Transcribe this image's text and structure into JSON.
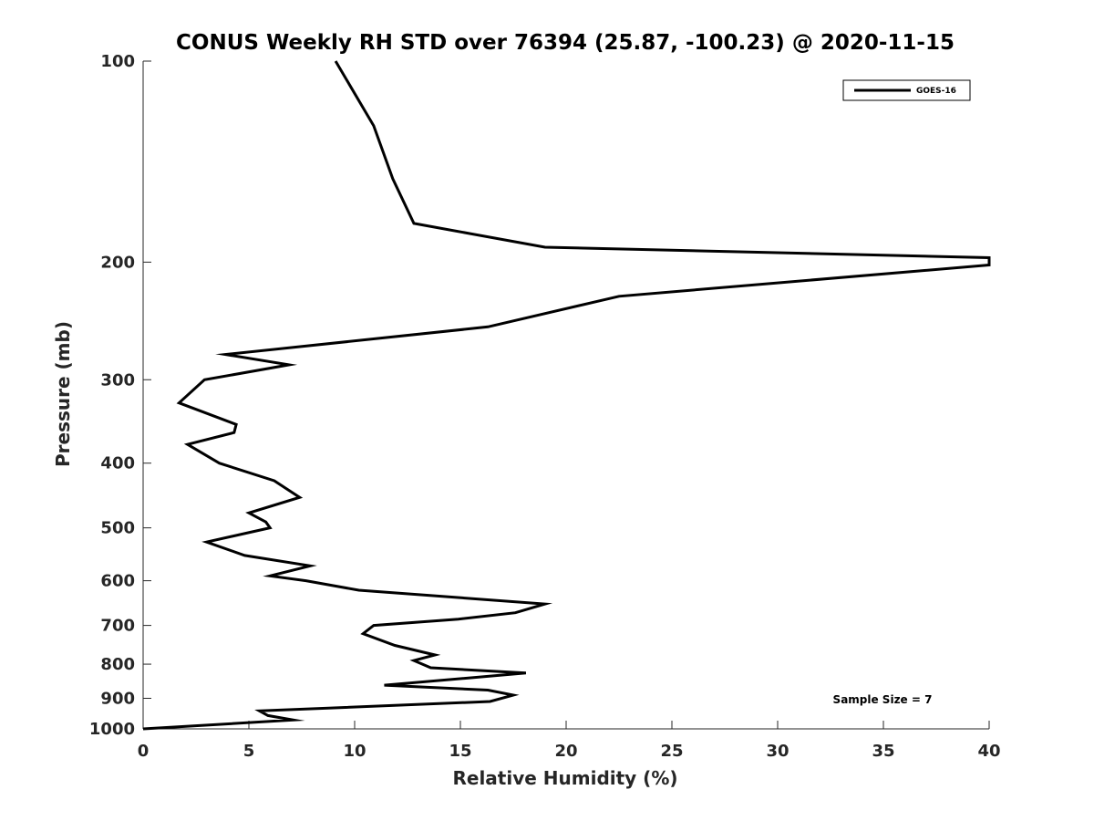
{
  "chart_data": {
    "type": "line",
    "title": "CONUS Weekly RH STD over 76394 (25.87, -100.23) @ 2020-11-15",
    "xlabel": "Relative Humidity (%)",
    "ylabel": "Pressure (mb)",
    "xlim": [
      0,
      40
    ],
    "ylim": [
      100,
      1000
    ],
    "y_scale": "log",
    "y_reversed": true,
    "x_ticks": [
      0,
      5,
      10,
      15,
      20,
      25,
      30,
      35,
      40
    ],
    "y_ticks": [
      100,
      200,
      300,
      400,
      500,
      600,
      700,
      800,
      900,
      1000
    ],
    "grid": false,
    "legend_position": "top-right",
    "annotation": "Sample Size = 7",
    "series": [
      {
        "name": "GOES-16",
        "color": "#000000",
        "points": [
          [
            9.1,
            100
          ],
          [
            10.9,
            125
          ],
          [
            11.8,
            150
          ],
          [
            12.8,
            175
          ],
          [
            19.0,
            190
          ],
          [
            40.0,
            197
          ],
          [
            40.0,
            202
          ],
          [
            22.5,
            225
          ],
          [
            16.3,
            250
          ],
          [
            3.9,
            275
          ],
          [
            6.9,
            285
          ],
          [
            2.9,
            300
          ],
          [
            1.7,
            325
          ],
          [
            4.4,
            350
          ],
          [
            4.3,
            360
          ],
          [
            2.1,
            375
          ],
          [
            3.6,
            400
          ],
          [
            6.2,
            425
          ],
          [
            7.4,
            450
          ],
          [
            5.0,
            475
          ],
          [
            5.8,
            490
          ],
          [
            6.0,
            500
          ],
          [
            3.0,
            525
          ],
          [
            4.8,
            550
          ],
          [
            7.9,
            570
          ],
          [
            6.0,
            590
          ],
          [
            7.7,
            600
          ],
          [
            10.2,
            620
          ],
          [
            19.0,
            650
          ],
          [
            17.6,
            670
          ],
          [
            14.9,
            685
          ],
          [
            10.9,
            700
          ],
          [
            10.4,
            720
          ],
          [
            11.9,
            750
          ],
          [
            13.8,
            775
          ],
          [
            12.8,
            790
          ],
          [
            13.6,
            810
          ],
          [
            18.1,
            825
          ],
          [
            11.4,
            860
          ],
          [
            16.3,
            875
          ],
          [
            17.5,
            890
          ],
          [
            16.4,
            910
          ],
          [
            5.5,
            940
          ],
          [
            5.9,
            955
          ],
          [
            7.1,
            970
          ],
          [
            0.0,
            1000
          ]
        ]
      }
    ]
  }
}
